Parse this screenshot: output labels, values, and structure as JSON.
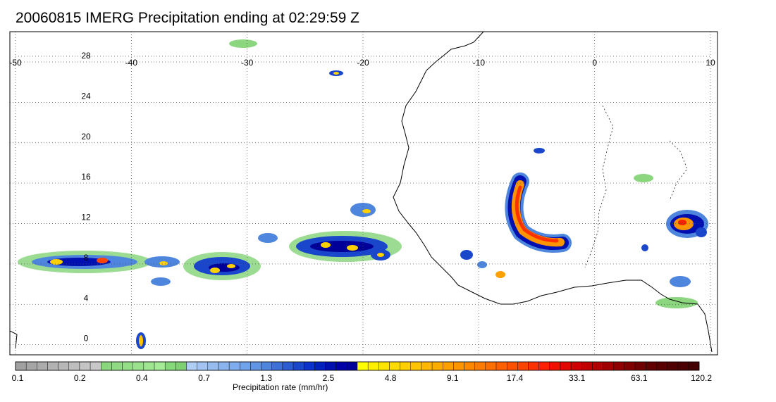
{
  "title": "20060815 IMERG Precipitation ending at 02:29:59 Z",
  "map": {
    "lon_range": [
      -50,
      10
    ],
    "lat_range": [
      -1,
      31
    ],
    "lon_ticks": [
      "-50",
      "-40",
      "-30",
      "-20",
      "-10",
      "0",
      "10"
    ],
    "lat_ticks": [
      "28",
      "24",
      "20",
      "16",
      "12",
      "8",
      "4",
      "0"
    ],
    "grid_style": "dotted"
  },
  "colorbar": {
    "label": "Precipitation rate (mm/hr)",
    "tick_labels": [
      "0.1",
      "0.2",
      "0.4",
      "0.7",
      "1.3",
      "2.5",
      "4.8",
      "9.1",
      "17.4",
      "33.1",
      "63.1",
      "120.2"
    ],
    "colors": [
      "#a0a0a0",
      "#a6a6a6",
      "#acacac",
      "#b2b2b2",
      "#b8b8b8",
      "#bebebe",
      "#c4c4c4",
      "#c8c8c8",
      "#8bd67f",
      "#90da83",
      "#95de88",
      "#9ae28d",
      "#9fe692",
      "#a4ea97",
      "#86d97a",
      "#7fd073",
      "#b0cdf4",
      "#a3c4f2",
      "#97bcf0",
      "#8ab4ee",
      "#7eacec",
      "#71a3ea",
      "#6196e4",
      "#4e86de",
      "#3d70d8",
      "#2c5cd2",
      "#1a46cc",
      "#0a32c8",
      "#0020c0",
      "#0010b0",
      "#0000a8",
      "#000098",
      "#ffff00",
      "#fff000",
      "#ffe600",
      "#ffdb00",
      "#ffd000",
      "#ffc400",
      "#ffb800",
      "#ffac00",
      "#ffa000",
      "#ff9400",
      "#ff8800",
      "#ff7c00",
      "#ff6e00",
      "#ff6000",
      "#ff5200",
      "#ff4400",
      "#ff3200",
      "#ff2000",
      "#f01000",
      "#e00800",
      "#d00000",
      "#c00000",
      "#b00000",
      "#a00000",
      "#900000",
      "#800000",
      "#700000",
      "#600000",
      "#580000",
      "#500000",
      "#4a0000",
      "#440000"
    ]
  }
}
